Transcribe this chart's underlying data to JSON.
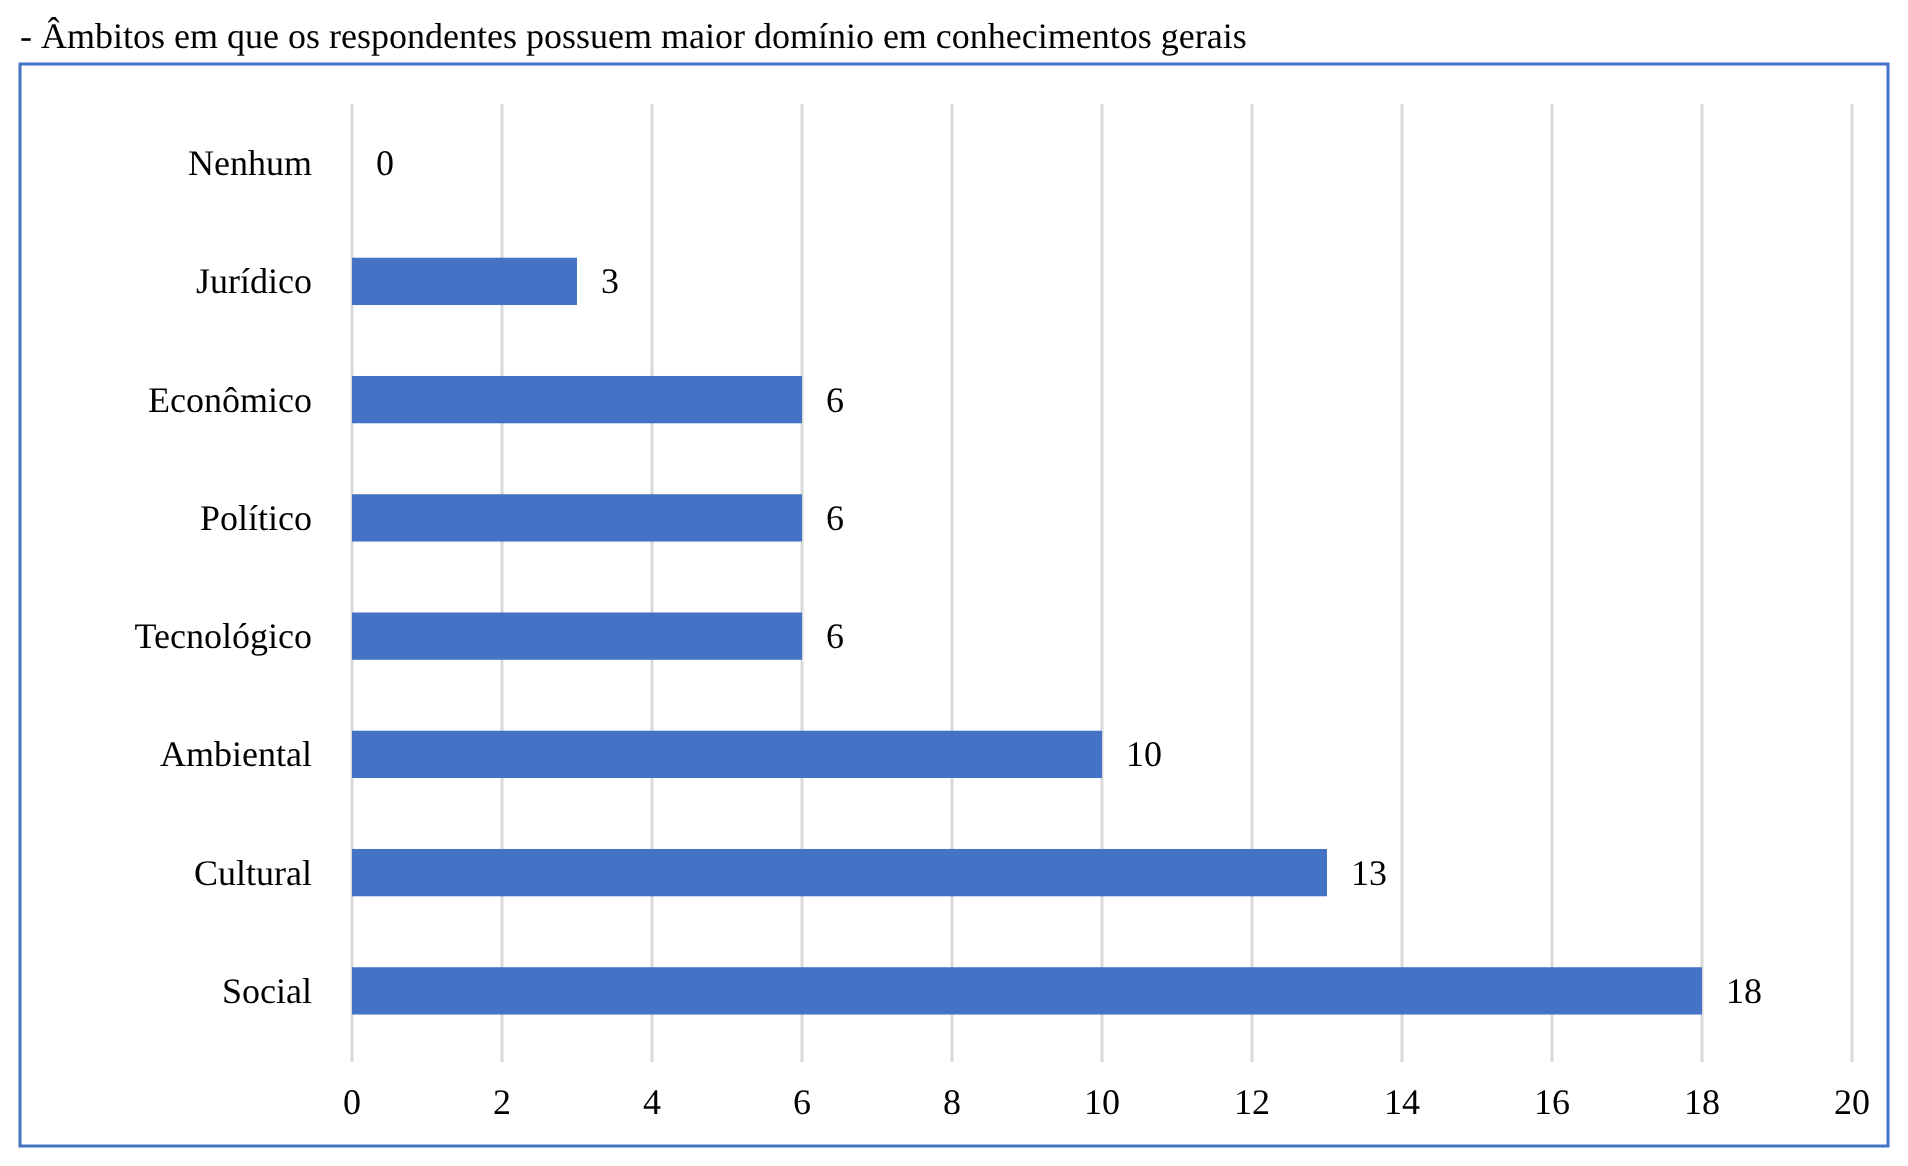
{
  "chart_data": {
    "type": "bar",
    "orientation": "horizontal",
    "title": "- Âmbitos em que os respondentes possuem maior domínio em conhecimentos gerais",
    "categories": [
      "Nenhum",
      "Jurídico",
      "Econômico",
      "Político",
      "Tecnológico",
      "Ambiental",
      "Cultural",
      "Social"
    ],
    "values": [
      0,
      3,
      6,
      6,
      6,
      10,
      13,
      18
    ],
    "color": "#4472c4",
    "data_labels": true,
    "xlim": [
      0,
      20
    ],
    "xticks": [
      0,
      2,
      4,
      6,
      8,
      10,
      12,
      14,
      16,
      18,
      20
    ],
    "grid": "x"
  }
}
